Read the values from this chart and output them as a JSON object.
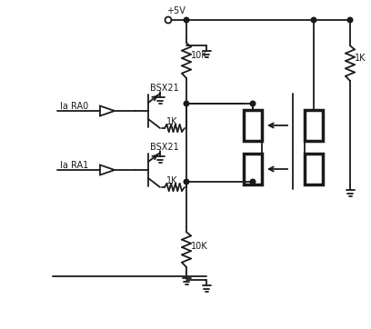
{
  "bg_color": "#ffffff",
  "line_color": "#1a1a1a",
  "lw": 1.3,
  "lw_thick": 2.5,
  "labels": {
    "vcc": "+5V",
    "ra0": "Ia RA0",
    "ra1": "Ia RA1",
    "bsx21_top": "BSX21",
    "bsx21_bot": "BSX21",
    "r1k_top": "1K",
    "r1k_bot": "1K",
    "r10k_top": "10K",
    "r10k_bot": "10K",
    "r1k_right": "1K"
  },
  "fig_w": 4.08,
  "fig_h": 3.62,
  "dpi": 100
}
